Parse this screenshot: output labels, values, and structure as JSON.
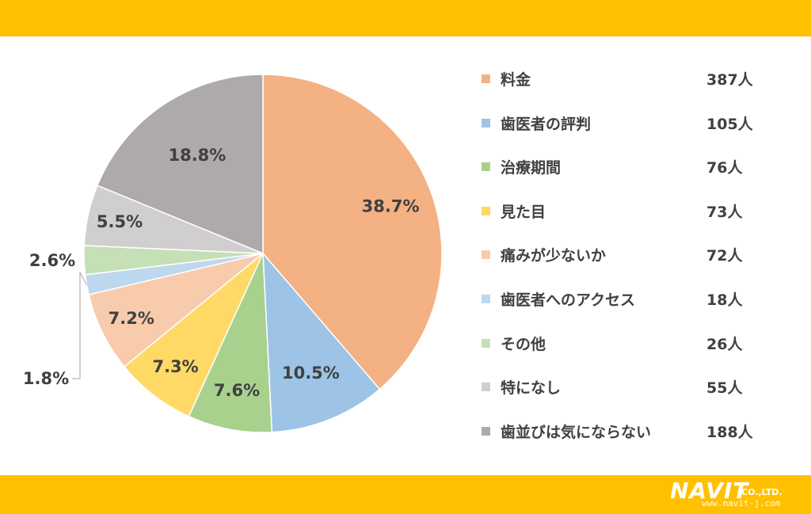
{
  "colors": {
    "band": "#ffc000",
    "text": "#404040"
  },
  "chart_data": {
    "type": "pie",
    "start_angle_deg": 0,
    "direction": "clockwise",
    "legend_position": "right",
    "slices": [
      {
        "label": "料金",
        "count": "387人",
        "percent": 38.7,
        "percent_label": "38.7%",
        "color": "#f4b183"
      },
      {
        "label": "歯医者の評判",
        "count": "105人",
        "percent": 10.5,
        "percent_label": "10.5%",
        "color": "#9dc3e6"
      },
      {
        "label": "治療期間",
        "count": "76人",
        "percent": 7.6,
        "percent_label": "7.6%",
        "color": "#a9d18e"
      },
      {
        "label": "見た目",
        "count": "73人",
        "percent": 7.3,
        "percent_label": "7.3%",
        "color": "#ffd966"
      },
      {
        "label": "痛みが少ないか",
        "count": "72人",
        "percent": 7.2,
        "percent_label": "7.2%",
        "color": "#f8cbad"
      },
      {
        "label": "歯医者へのアクセス",
        "count": "18人",
        "percent": 1.8,
        "percent_label": "1.8%",
        "color": "#bdd7ee"
      },
      {
        "label": "その他",
        "count": "26人",
        "percent": 2.6,
        "percent_label": "2.6%",
        "color": "#c5e0b4"
      },
      {
        "label": "特になし",
        "count": "55人",
        "percent": 5.5,
        "percent_label": "5.5%",
        "color": "#d0cece"
      },
      {
        "label": "歯並びは気にならない",
        "count": "188人",
        "percent": 18.8,
        "percent_label": "18.8%",
        "color": "#aeaaaa"
      }
    ]
  },
  "logo": {
    "name": "NAVIT",
    "suffix": "CO.,LTD.",
    "url": "www.navit-j.com"
  }
}
